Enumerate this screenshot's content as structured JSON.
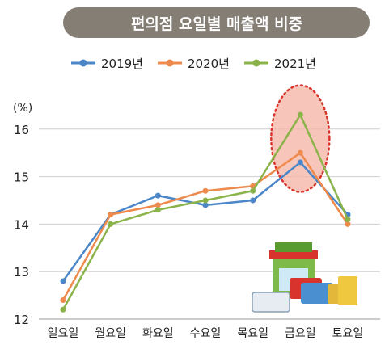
{
  "chart_data": {
    "type": "line",
    "title": "편의점 요일별 매출액 비중",
    "ylabel": "(%)",
    "xlabel": "",
    "categories": [
      "일요일",
      "월요일",
      "화요일",
      "수요일",
      "목요일",
      "금요일",
      "토요일"
    ],
    "ylim": [
      12,
      16.6
    ],
    "yticks": [
      12,
      13,
      14,
      15,
      16
    ],
    "grid": true,
    "legend_position": "top",
    "highlight_category": "금요일",
    "illustration": "store-shopping-illustration",
    "series": [
      {
        "name": "2019년",
        "color": "#4a86c8",
        "values": [
          12.8,
          14.2,
          14.6,
          14.4,
          14.5,
          15.3,
          14.2
        ]
      },
      {
        "name": "2020년",
        "color": "#ee8a4c",
        "values": [
          12.4,
          14.2,
          14.4,
          14.7,
          14.8,
          15.5,
          14.0
        ]
      },
      {
        "name": "2021년",
        "color": "#8ab34a",
        "values": [
          12.2,
          14.0,
          14.3,
          14.5,
          14.7,
          16.3,
          14.1
        ]
      }
    ]
  },
  "colors": {
    "title_bg": "#857e75",
    "title_text": "#ffffff",
    "grid": "#cfcfcf",
    "highlight_fill": "#f5b6a8",
    "highlight_stroke": "#d9342b"
  }
}
